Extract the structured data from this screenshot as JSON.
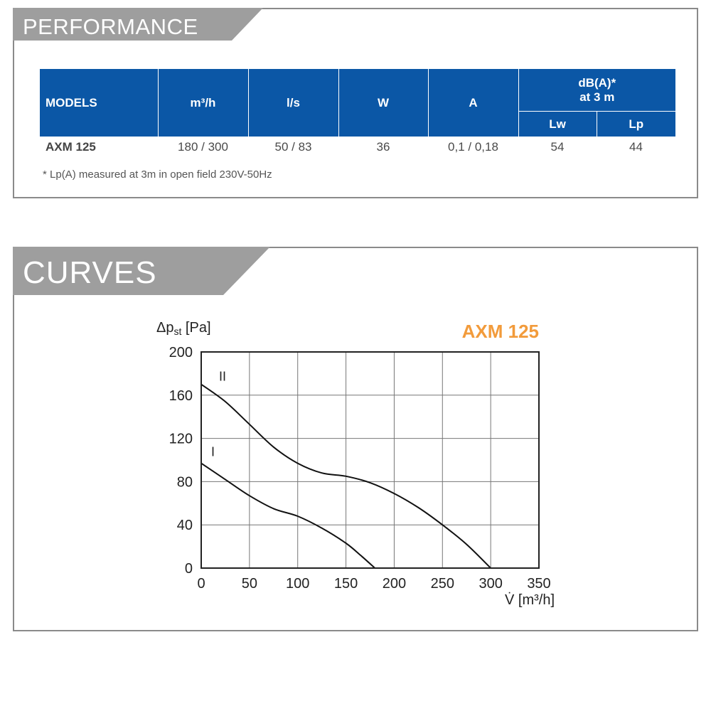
{
  "performance": {
    "header": "PERFORMANCE",
    "columns": [
      "MODELS",
      "m³/h",
      "l/s",
      "W",
      "A"
    ],
    "db_header_line1": "dB(A)*",
    "db_header_line2": "at 3 m",
    "db_subcolumns": [
      "Lw",
      "Lp"
    ],
    "rows": [
      {
        "model": "AXM 125",
        "m3h": "180 / 300",
        "ls": "50 / 83",
        "w": "36",
        "a": "0,1 / 0,18",
        "lw": "54",
        "lp": "44"
      }
    ],
    "footnote": "* Lp(A) measured at 3m in open field 230V-50Hz"
  },
  "curves": {
    "header": "CURVES"
  },
  "chart_data": {
    "type": "line",
    "title": "AXM 125",
    "xlabel": "V̇ [m³/h]",
    "ylabel": "Δpst [Pa]",
    "xlim": [
      0,
      350
    ],
    "ylim": [
      0,
      200
    ],
    "xticks": [
      0,
      50,
      100,
      150,
      200,
      250,
      300,
      350
    ],
    "yticks": [
      0,
      40,
      80,
      120,
      160,
      200
    ],
    "grid": true,
    "colors": {
      "title": "#f29b3b",
      "table_header": "#0b57a6",
      "panel_tab": "#9e9e9e"
    },
    "series": [
      {
        "name": "I",
        "x": [
          0,
          25,
          50,
          75,
          100,
          125,
          150,
          165,
          180
        ],
        "y": [
          97,
          82,
          67,
          55,
          48,
          37,
          23,
          12,
          0
        ]
      },
      {
        "name": "II",
        "x": [
          0,
          25,
          50,
          75,
          100,
          125,
          150,
          175,
          200,
          225,
          250,
          275,
          300
        ],
        "y": [
          170,
          154,
          133,
          112,
          97,
          88,
          85,
          79,
          69,
          56,
          40,
          22,
          0
        ]
      }
    ]
  }
}
